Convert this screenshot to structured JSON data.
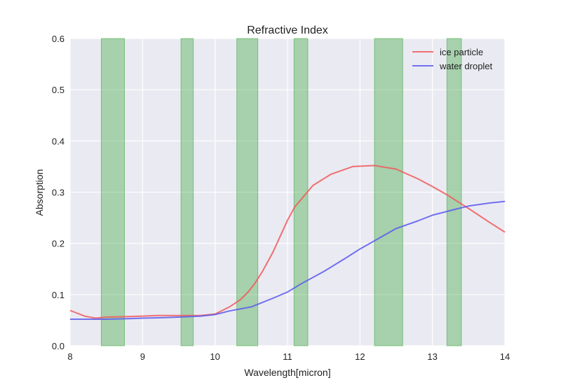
{
  "chart_data": {
    "type": "line",
    "title": "Refractive Index",
    "xlabel": "Wavelength[micron]",
    "ylabel": "Absorption",
    "xlim": [
      8,
      14
    ],
    "ylim": [
      0,
      0.6
    ],
    "xticks": [
      "8",
      "9",
      "10",
      "11",
      "12",
      "13",
      "14"
    ],
    "yticks": [
      "0.0",
      "0.1",
      "0.2",
      "0.3",
      "0.4",
      "0.5",
      "0.6"
    ],
    "grid": true,
    "legend_position": "top-right",
    "background_color": "#EAEAF2",
    "band_color": "#2CA02C",
    "bands": [
      [
        8.43,
        8.75
      ],
      [
        9.53,
        9.7
      ],
      [
        10.3,
        10.59
      ],
      [
        11.09,
        11.28
      ],
      [
        12.2,
        12.59
      ],
      [
        13.2,
        13.4
      ]
    ],
    "series": [
      {
        "name": "ice particle",
        "color": "#F0595A",
        "x": [
          8.0,
          8.2,
          8.35,
          8.5,
          8.8,
          9.0,
          9.2,
          9.4,
          9.6,
          9.8,
          10.0,
          10.2,
          10.35,
          10.45,
          10.55,
          10.65,
          10.8,
          11.0,
          11.1,
          11.35,
          11.6,
          11.9,
          12.2,
          12.5,
          12.8,
          13.0,
          13.2,
          13.5,
          13.8,
          14.0
        ],
        "y": [
          0.069,
          0.058,
          0.054,
          0.056,
          0.057,
          0.058,
          0.059,
          0.059,
          0.059,
          0.059,
          0.062,
          0.076,
          0.09,
          0.104,
          0.122,
          0.144,
          0.183,
          0.245,
          0.271,
          0.313,
          0.335,
          0.35,
          0.352,
          0.345,
          0.326,
          0.311,
          0.295,
          0.268,
          0.24,
          0.222
        ]
      },
      {
        "name": "water droplet",
        "color": "#5B5BF0",
        "x": [
          8.0,
          8.3,
          8.5,
          8.8,
          9.0,
          9.3,
          9.5,
          9.8,
          10.0,
          10.2,
          10.5,
          10.8,
          11.0,
          11.2,
          11.5,
          11.8,
          12.0,
          12.2,
          12.5,
          12.8,
          13.0,
          13.3,
          13.5,
          13.8,
          14.0
        ],
        "y": [
          0.052,
          0.052,
          0.052,
          0.053,
          0.054,
          0.055,
          0.056,
          0.058,
          0.061,
          0.068,
          0.076,
          0.093,
          0.105,
          0.122,
          0.145,
          0.171,
          0.189,
          0.205,
          0.229,
          0.244,
          0.255,
          0.266,
          0.273,
          0.279,
          0.282
        ]
      }
    ]
  }
}
